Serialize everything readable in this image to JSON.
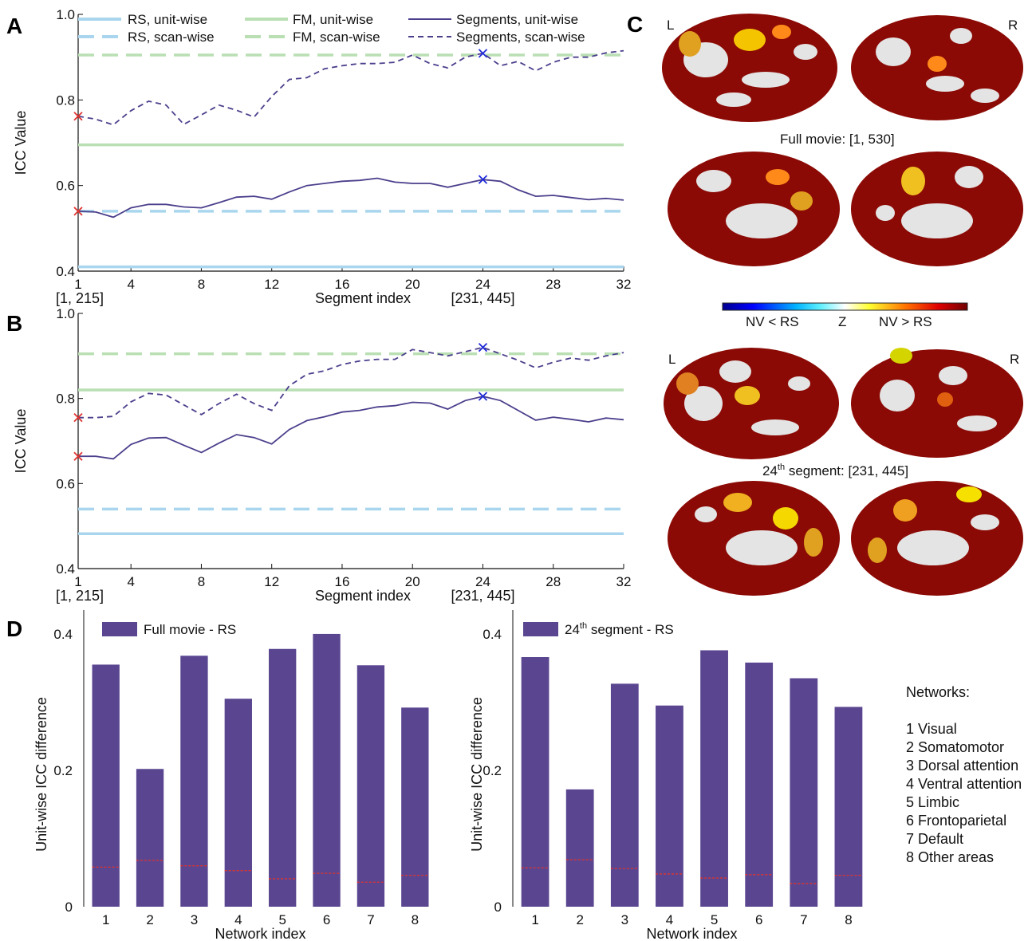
{
  "colors": {
    "rs": "#a9d6ee",
    "fm": "#b9dfb3",
    "segments": "#4b3f8c",
    "bar": "#5a4690",
    "red_marker": "#e0332f",
    "blue_marker": "#1f2bd6",
    "red_text": "#e02020",
    "blue_text": "#1a1ad4",
    "brain_base": "#8b0a05",
    "brain_bg": "#e4e4e4"
  },
  "panels": {
    "A": "A",
    "B": "B",
    "C": "C",
    "D": "D"
  },
  "legend": {
    "rs_unit": "RS, unit-wise",
    "rs_scan": "RS, scan-wise",
    "fm_unit": "FM, unit-wise",
    "fm_scan": "FM, scan-wise",
    "seg_unit": "Segments, unit-wise",
    "seg_scan": "Segments, scan-wise"
  },
  "brain": {
    "L": "L",
    "R": "R",
    "full_caption": "Full movie: [1, 530]",
    "seg_caption_prefix": "24",
    "seg_caption_sup": "th",
    "seg_caption_rest": " segment: [231, 445]",
    "colorbar_left": "NV < RS",
    "colorbar_mid": "Z",
    "colorbar_right": "NV > RS"
  },
  "networks": {
    "heading": "Networks:",
    "items": [
      "1 Visual",
      "2 Somatomotor",
      "3 Dorsal attention",
      "4 Ventral attention",
      "5 Limbic",
      "6 Frontoparietal",
      "7 Default",
      "8 Other areas"
    ]
  },
  "chart_data": [
    {
      "panel": "A",
      "type": "line",
      "xlabel": "Segment index",
      "ylabel": "ICC Value",
      "xlim": [
        1,
        32
      ],
      "ylim": [
        0.4,
        1.0
      ],
      "xticks": [
        "1",
        "4",
        "8",
        "12",
        "16",
        "20",
        "24",
        "28",
        "32"
      ],
      "yticks": [
        "0.4",
        "0.6",
        "0.8",
        "1.0"
      ],
      "range_labels": {
        "left": "[1, 215]",
        "right": "[231, 445]"
      },
      "reference_lines": {
        "rs_unit": 0.41,
        "rs_scan": 0.54,
        "fm_unit": 0.695,
        "fm_scan": 0.905
      },
      "series": [
        {
          "name": "Segments, unit-wise",
          "values": [
            0.54,
            0.538,
            0.526,
            0.548,
            0.556,
            0.556,
            0.55,
            0.548,
            0.56,
            0.573,
            0.575,
            0.568,
            0.585,
            0.6,
            0.605,
            0.61,
            0.612,
            0.617,
            0.608,
            0.605,
            0.605,
            0.596,
            0.605,
            0.614,
            0.61,
            0.59,
            0.575,
            0.577,
            0.572,
            0.567,
            0.57,
            0.566
          ]
        },
        {
          "name": "Segments, scan-wise",
          "values": [
            0.762,
            0.755,
            0.742,
            0.775,
            0.797,
            0.788,
            0.743,
            0.765,
            0.788,
            0.776,
            0.76,
            0.808,
            0.848,
            0.852,
            0.873,
            0.88,
            0.885,
            0.885,
            0.888,
            0.905,
            0.885,
            0.875,
            0.9,
            0.909,
            0.88,
            0.89,
            0.868,
            0.888,
            0.9,
            0.9,
            0.91,
            0.915
          ]
        }
      ],
      "markers": {
        "red_index": 1,
        "blue_index": 24
      }
    },
    {
      "panel": "B",
      "type": "line",
      "xlabel": "Segment index",
      "ylabel": "ICC Value",
      "xlim": [
        1,
        32
      ],
      "ylim": [
        0.4,
        1.0
      ],
      "xticks": [
        "1",
        "4",
        "8",
        "12",
        "16",
        "20",
        "24",
        "28",
        "32"
      ],
      "yticks": [
        "0.4",
        "0.6",
        "0.8",
        "1.0"
      ],
      "range_labels": {
        "left": "[1, 215]",
        "right": "[231, 445]"
      },
      "reference_lines": {
        "rs_unit": 0.482,
        "rs_scan": 0.54,
        "fm_unit": 0.82,
        "fm_scan": 0.905
      },
      "series": [
        {
          "name": "Segments, unit-wise",
          "values": [
            0.664,
            0.664,
            0.658,
            0.692,
            0.707,
            0.708,
            0.69,
            0.673,
            0.695,
            0.715,
            0.708,
            0.693,
            0.727,
            0.748,
            0.757,
            0.768,
            0.772,
            0.78,
            0.783,
            0.791,
            0.789,
            0.775,
            0.795,
            0.805,
            0.795,
            0.772,
            0.749,
            0.756,
            0.751,
            0.745,
            0.754,
            0.75
          ]
        },
        {
          "name": "Segments, scan-wise",
          "values": [
            0.755,
            0.755,
            0.758,
            0.792,
            0.812,
            0.808,
            0.785,
            0.762,
            0.788,
            0.81,
            0.788,
            0.772,
            0.83,
            0.857,
            0.865,
            0.88,
            0.888,
            0.892,
            0.892,
            0.915,
            0.908,
            0.9,
            0.91,
            0.92,
            0.905,
            0.89,
            0.872,
            0.885,
            0.895,
            0.89,
            0.9,
            0.908
          ]
        }
      ],
      "markers": {
        "red_index": 1,
        "blue_index": 24
      }
    },
    {
      "panel": "D-left",
      "type": "bar",
      "legend": "Full movie - RS",
      "xlabel": "Network index",
      "ylabel": "Unit-wise ICC difference",
      "categories": [
        "1",
        "2",
        "3",
        "4",
        "5",
        "6",
        "7",
        "8"
      ],
      "yticks": [
        "0",
        "0.2",
        "0.4"
      ],
      "ylim": [
        0,
        0.435
      ],
      "values": [
        0.355,
        0.202,
        0.368,
        0.305,
        0.378,
        0.4,
        0.354,
        0.292
      ],
      "thresholds": [
        0.058,
        0.068,
        0.06,
        0.053,
        0.041,
        0.049,
        0.036,
        0.046
      ]
    },
    {
      "panel": "D-right",
      "type": "bar",
      "legend_prefix": "24",
      "legend_sup": "th",
      "legend_rest": " segment - RS",
      "xlabel": "Network index",
      "ylabel": "Unit-wise ICC difference",
      "categories": [
        "1",
        "2",
        "3",
        "4",
        "5",
        "6",
        "7",
        "8"
      ],
      "yticks": [
        "0",
        "0.2",
        "0.4"
      ],
      "ylim": [
        0,
        0.435
      ],
      "values": [
        0.366,
        0.172,
        0.327,
        0.295,
        0.376,
        0.358,
        0.335,
        0.293
      ],
      "thresholds": [
        0.057,
        0.069,
        0.056,
        0.048,
        0.042,
        0.047,
        0.034,
        0.046
      ]
    }
  ]
}
